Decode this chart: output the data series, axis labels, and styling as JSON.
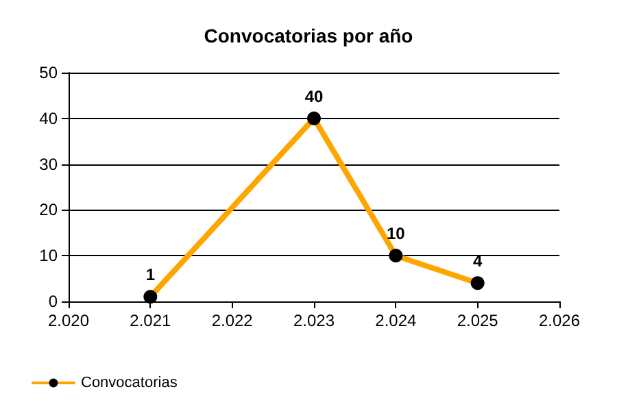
{
  "chart_data": {
    "type": "line",
    "title": "Convocatorias por año",
    "x": [
      2021,
      2023,
      2024,
      2025
    ],
    "series": [
      {
        "name": "Convocatorias",
        "color": "#ffa500",
        "values": [
          1,
          40,
          10,
          4
        ]
      }
    ],
    "xlim": [
      2020,
      2026
    ],
    "xticks": [
      {
        "value": 2020,
        "label": "2.020"
      },
      {
        "value": 2021,
        "label": "2.021"
      },
      {
        "value": 2022,
        "label": "2.022"
      },
      {
        "value": 2023,
        "label": "2.023"
      },
      {
        "value": 2024,
        "label": "2.024"
      },
      {
        "value": 2025,
        "label": "2.025"
      },
      {
        "value": 2026,
        "label": "2.026"
      }
    ],
    "ylim": [
      0,
      50
    ],
    "yticks": [
      0,
      10,
      20,
      30,
      40,
      50
    ],
    "grid": "y",
    "legend": "bottom left",
    "marker": "circle",
    "line_style": "solid",
    "data_labels": true
  }
}
